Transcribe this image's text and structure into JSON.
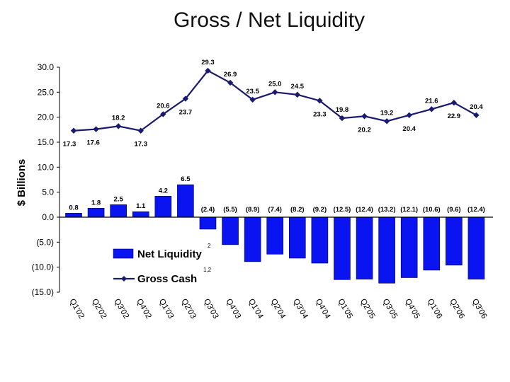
{
  "chart_data": {
    "type": "bar+line",
    "title": "Gross / Net Liquidity",
    "ylabel": "$ Billions",
    "xlabel": "",
    "ylim": [
      -15,
      30
    ],
    "yticks": [
      30,
      25,
      20,
      15,
      10,
      5,
      0,
      -5,
      -10,
      -15
    ],
    "ytick_labels": [
      "30.0",
      "25.0",
      "20.0",
      "15.0",
      "10.0",
      "5.0",
      "0.0",
      "(5.0)",
      "(10.0)",
      "(15.0)"
    ],
    "categories": [
      "Q1'02",
      "Q2'02",
      "Q3'02",
      "Q4'02",
      "Q1'03",
      "Q2'03",
      "Q3'03",
      "Q4'03",
      "Q1'04",
      "Q2'04",
      "Q3'04",
      "Q4'04",
      "Q1'05",
      "Q2'05",
      "Q3'05",
      "Q4'05",
      "Q1'06",
      "Q2'06",
      "Q3'06"
    ],
    "series": [
      {
        "name": "Net Liquidity",
        "superscript": "2",
        "kind": "bar",
        "color": "#0a14f0",
        "values": [
          0.8,
          1.8,
          2.5,
          1.1,
          4.2,
          6.5,
          -2.4,
          -5.5,
          -8.9,
          -7.4,
          -8.2,
          -9.2,
          -12.5,
          -12.4,
          -13.2,
          -12.1,
          -10.6,
          -9.6,
          -12.4
        ],
        "labels": [
          "0.8",
          "1.8",
          "2.5",
          "1.1",
          "4.2",
          "6.5",
          "(2.4)",
          "(5.5)",
          "(8.9)",
          "(7.4)",
          "(8.2)",
          "(9.2)",
          "(12.5)",
          "(12.4)",
          "(13.2)",
          "(12.1)",
          "(10.6)",
          "(9.6)",
          "(12.4)"
        ]
      },
      {
        "name": "Gross Cash",
        "superscript": "1,2",
        "kind": "line",
        "color": "#1a1a6e",
        "values": [
          17.3,
          17.6,
          18.2,
          17.3,
          20.6,
          23.7,
          29.3,
          26.9,
          23.5,
          25.0,
          24.5,
          23.3,
          19.8,
          20.2,
          19.2,
          20.4,
          21.6,
          22.9,
          20.4
        ],
        "labels": [
          "17.3",
          "17.6",
          "18.2",
          "17.3",
          "20.6",
          "23.7",
          "29.3",
          "26.9",
          "23.5",
          "25.0",
          "24.5",
          "23.3",
          "19.8",
          "20.2",
          "19.2",
          "20.4",
          "21.6",
          "22.9",
          "20.4"
        ]
      }
    ],
    "legend": "lower-left inside plot"
  }
}
